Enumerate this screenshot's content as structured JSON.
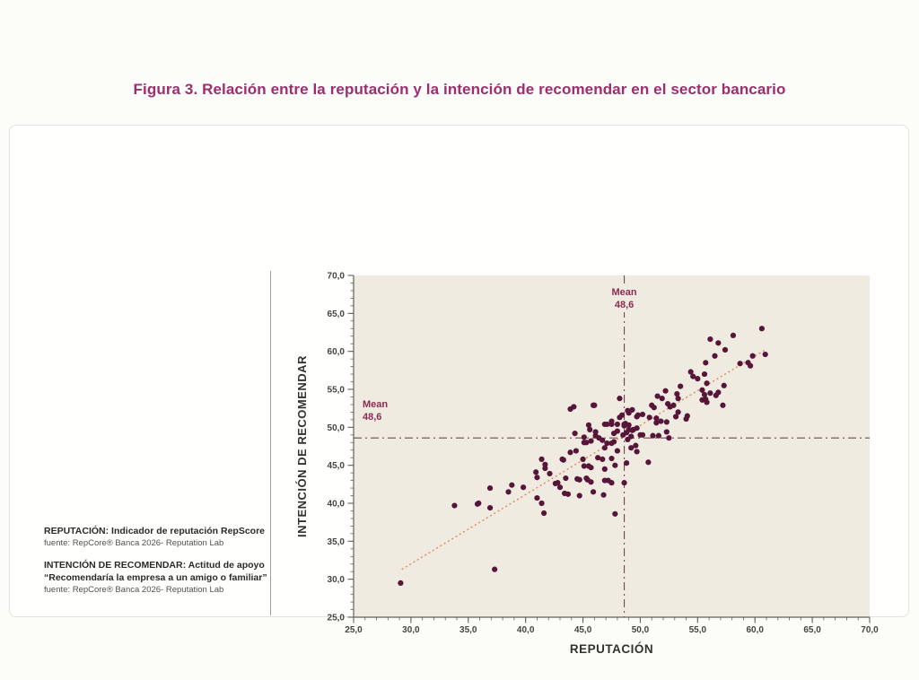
{
  "figure": {
    "title": "Figura 3. Relación entre la reputación y la intención de recomendar en el sector bancario",
    "title_color": "#9e2d6f"
  },
  "notes": {
    "reputacion_title": "REPUTACIÓN: Indicador de reputación RepScore",
    "reputacion_source": "fuente: RepCore® Banca 2026- Reputation Lab",
    "intencion_title": "INTENCIÓN DE RECOMENDAR: Actitud de apoyo",
    "intencion_quote": "“Recomendaría la empresa a un amigo o familiar”",
    "intencion_source": "fuente: RepCore® Banca 2026- Reputation Lab"
  },
  "chart_data": {
    "type": "scatter",
    "title": "",
    "xlabel": "REPUTACIÓN",
    "ylabel": "INTENCIÓN DE RECOMENDAR",
    "xlim": [
      25,
      70
    ],
    "ylim": [
      25,
      70
    ],
    "major_ticks": [
      25,
      30,
      35,
      40,
      45,
      50,
      55,
      60,
      65,
      70
    ],
    "minor_tick_step": 1,
    "decimal_separator": ",",
    "grid": false,
    "legend": "none",
    "mean_x": 48.6,
    "mean_y": 48.6,
    "mean_label": "Mean",
    "mean_value_label": "48,6",
    "trendline": {
      "x1": 29.2,
      "y1": 31.3,
      "x2": 60.9,
      "y2": 60.2
    },
    "colors": {
      "point": "#561539",
      "trend": "#e0885f",
      "mean_line": "#6e4a50",
      "mean_label": "#8d2b53",
      "axis": "#63625c",
      "tick_text": "#45443f",
      "axis_title": "#33322e",
      "plot_bg": "#efebe1"
    },
    "points": [
      [
        29.1,
        29.5
      ],
      [
        37.3,
        31.3
      ],
      [
        33.8,
        39.7
      ],
      [
        35.8,
        39.9
      ],
      [
        36.9,
        39.4
      ],
      [
        35.9,
        40.0
      ],
      [
        36.9,
        42.0
      ],
      [
        38.5,
        41.5
      ],
      [
        38.8,
        42.4
      ],
      [
        39.8,
        42.1
      ],
      [
        40.9,
        44.1
      ],
      [
        41.0,
        43.4
      ],
      [
        41.0,
        40.7
      ],
      [
        41.4,
        45.8
      ],
      [
        41.7,
        45.1
      ],
      [
        41.7,
        44.6
      ],
      [
        42.1,
        43.9
      ],
      [
        42.8,
        42.7
      ],
      [
        43.0,
        42.1
      ],
      [
        43.4,
        41.3
      ],
      [
        41.4,
        40.0
      ],
      [
        41.6,
        38.7
      ],
      [
        43.3,
        45.7
      ],
      [
        42.6,
        42.6
      ],
      [
        43.2,
        45.8
      ],
      [
        43.5,
        43.3
      ],
      [
        43.7,
        41.2
      ],
      [
        43.9,
        46.7
      ],
      [
        44.4,
        46.9
      ],
      [
        44.5,
        43.2
      ],
      [
        44.7,
        41.0
      ],
      [
        44.7,
        43.1
      ],
      [
        45.0,
        45.8
      ],
      [
        45.1,
        44.9
      ],
      [
        45.3,
        43.3
      ],
      [
        45.4,
        43.1
      ],
      [
        45.3,
        48.0
      ],
      [
        45.5,
        44.9
      ],
      [
        45.7,
        44.7
      ],
      [
        45.7,
        42.8
      ],
      [
        45.9,
        41.5
      ],
      [
        46.1,
        48.9
      ],
      [
        46.3,
        46.0
      ],
      [
        46.7,
        45.8
      ],
      [
        46.7,
        48.3
      ],
      [
        46.8,
        41.1
      ],
      [
        46.9,
        43.0
      ],
      [
        46.9,
        44.5
      ],
      [
        47.1,
        47.9
      ],
      [
        47.2,
        43.0
      ],
      [
        47.5,
        42.7
      ],
      [
        47.5,
        45.9
      ],
      [
        47.7,
        48.1
      ],
      [
        47.8,
        38.6
      ],
      [
        47.8,
        45.0
      ],
      [
        48.0,
        46.9
      ],
      [
        44.2,
        52.7
      ],
      [
        46.0,
        52.9
      ],
      [
        43.9,
        52.4
      ],
      [
        45.9,
        52.9
      ],
      [
        44.3,
        49.2
      ],
      [
        45.1,
        48.7
      ],
      [
        45.6,
        49.7
      ],
      [
        45.5,
        50.3
      ],
      [
        46.1,
        49.4
      ],
      [
        46.4,
        48.6
      ],
      [
        45.7,
        48.2
      ],
      [
        45.1,
        48.0
      ],
      [
        46.9,
        47.3
      ],
      [
        47.5,
        47.9
      ],
      [
        46.9,
        50.4
      ],
      [
        47.1,
        50.4
      ],
      [
        47.5,
        50.8
      ],
      [
        47.5,
        50.4
      ],
      [
        47.7,
        49.2
      ],
      [
        48.2,
        53.8
      ],
      [
        48.2,
        51.3
      ],
      [
        48.4,
        51.6
      ],
      [
        48.6,
        50.4
      ],
      [
        48.6,
        42.7
      ],
      [
        48.8,
        49.3
      ],
      [
        48.8,
        45.3
      ],
      [
        48.9,
        52.2
      ],
      [
        49.0,
        50.3
      ],
      [
        49.2,
        47.3
      ],
      [
        49.3,
        49.6
      ],
      [
        49.3,
        52.3
      ],
      [
        49.4,
        49.7
      ],
      [
        49.6,
        47.6
      ],
      [
        49.7,
        51.4
      ],
      [
        49.7,
        46.8
      ],
      [
        49.8,
        51.6
      ],
      [
        50.0,
        49.0
      ],
      [
        50.2,
        51.7
      ],
      [
        50.2,
        49.0
      ],
      [
        50.7,
        45.4
      ],
      [
        50.8,
        51.3
      ],
      [
        51.0,
        52.9
      ],
      [
        51.1,
        48.9
      ],
      [
        51.2,
        52.6
      ],
      [
        51.4,
        50.6
      ],
      [
        51.4,
        51.2
      ],
      [
        51.5,
        54.1
      ],
      [
        51.6,
        48.9
      ],
      [
        51.8,
        50.8
      ],
      [
        51.9,
        53.8
      ],
      [
        52.2,
        54.8
      ],
      [
        52.3,
        50.7
      ],
      [
        52.3,
        49.4
      ],
      [
        52.4,
        53.1
      ],
      [
        52.5,
        48.6
      ],
      [
        52.6,
        52.7
      ],
      [
        52.9,
        52.9
      ],
      [
        53.1,
        51.4
      ],
      [
        53.2,
        54.4
      ],
      [
        53.3,
        53.8
      ],
      [
        53.3,
        52.0
      ],
      [
        53.5,
        55.4
      ],
      [
        54.0,
        51.1
      ],
      [
        54.1,
        51.5
      ],
      [
        54.4,
        57.3
      ],
      [
        54.6,
        56.7
      ],
      [
        55.0,
        56.4
      ],
      [
        55.4,
        54.9
      ],
      [
        55.4,
        53.6
      ],
      [
        55.6,
        57.0
      ],
      [
        55.6,
        54.3
      ],
      [
        55.7,
        53.7
      ],
      [
        55.8,
        53.3
      ],
      [
        55.7,
        58.5
      ],
      [
        55.8,
        55.8
      ],
      [
        56.1,
        61.6
      ],
      [
        56.1,
        54.5
      ],
      [
        56.5,
        59.4
      ],
      [
        56.8,
        61.1
      ],
      [
        56.8,
        54.6
      ],
      [
        56.6,
        54.2
      ],
      [
        57.2,
        52.9
      ],
      [
        57.3,
        55.5
      ],
      [
        57.4,
        60.2
      ],
      [
        58.1,
        62.1
      ],
      [
        58.7,
        58.4
      ],
      [
        59.4,
        58.5
      ],
      [
        59.6,
        58.1
      ],
      [
        59.8,
        59.4
      ],
      [
        60.6,
        63.0
      ],
      [
        60.9,
        59.6
      ],
      [
        48.0,
        50.4
      ],
      [
        48.6,
        50.2
      ],
      [
        49.0,
        49.7
      ],
      [
        49.2,
        48.8
      ],
      [
        49.7,
        49.9
      ],
      [
        48.7,
        50.5
      ],
      [
        49.0,
        51.9
      ],
      [
        48.0,
        49.5
      ],
      [
        48.5,
        49.0
      ],
      [
        48.9,
        48.4
      ]
    ]
  }
}
